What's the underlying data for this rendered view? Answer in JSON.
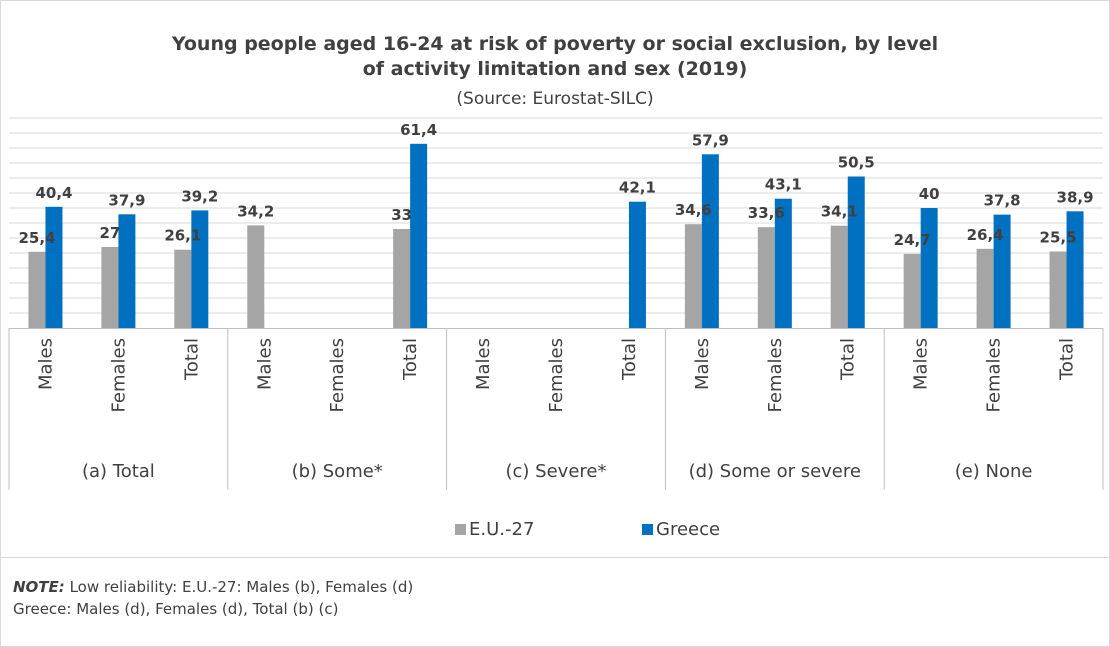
{
  "chart_data": {
    "type": "bar",
    "title_line1": "Young people aged 16-24 at risk of poverty or social exclusion, by level",
    "title_line2": "of activity limitation and sex (2019)",
    "subtitle": "(Source: Eurostat-SILC)",
    "groups": [
      {
        "label": "(a) Total",
        "categories": [
          "Males",
          "Females",
          "Total"
        ]
      },
      {
        "label": "(b) Some*",
        "categories": [
          "Males",
          "Females",
          "Total"
        ]
      },
      {
        "label": "(c) Severe*",
        "categories": [
          "Males",
          "Females",
          "Total"
        ]
      },
      {
        "label": "(d) Some or severe",
        "categories": [
          "Males",
          "Females",
          "Total"
        ]
      },
      {
        "label": "(e) None",
        "categories": [
          "Males",
          "Females",
          "Total"
        ]
      }
    ],
    "series": [
      {
        "name": "E.U.-27",
        "color": "#a5a5a5",
        "values": [
          25.4,
          27,
          26.1,
          34.2,
          null,
          33,
          null,
          null,
          null,
          34.6,
          33.6,
          34.1,
          24.7,
          26.4,
          25.5
        ],
        "labels": [
          "25,4",
          "27",
          "26,1",
          "34,2",
          "",
          "33",
          "",
          "",
          "",
          "34,6",
          "33,6",
          "34,1",
          "24,7",
          "26,4",
          "25,5"
        ]
      },
      {
        "name": "Greece",
        "color": "#0070c0",
        "values": [
          40.4,
          37.9,
          39.2,
          null,
          null,
          61.4,
          null,
          null,
          42.1,
          57.9,
          43.1,
          50.5,
          40,
          37.8,
          38.9
        ],
        "labels": [
          "40,4",
          "37,9",
          "39,2",
          "",
          "",
          "61,4",
          "",
          "",
          "42,1",
          "57,9",
          "43,1",
          "50,5",
          "40",
          "37,8",
          "38,9"
        ]
      }
    ],
    "ylim": [
      0,
      70
    ],
    "grid": true,
    "legend_position": "bottom"
  },
  "note": {
    "label": "NOTE:",
    "line1": " Low reliability: E.U.-27: Males (b), Females (d)",
    "line2": "Greece: Males (d), Females (d), Total (b) (c)"
  }
}
